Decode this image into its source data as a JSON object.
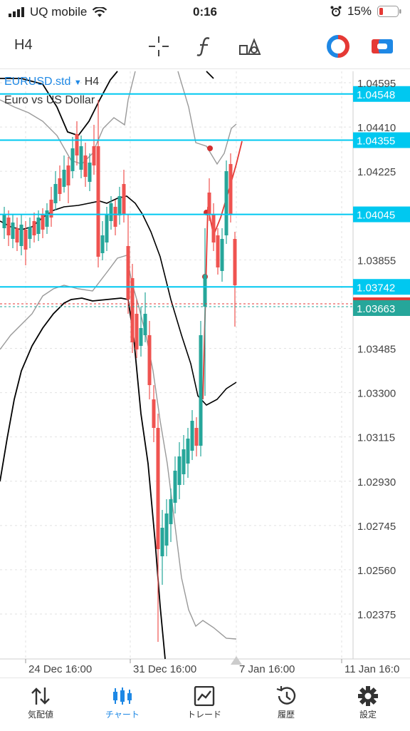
{
  "status_bar": {
    "carrier": "UQ mobile",
    "time": "0:16",
    "battery": "15%",
    "icons": [
      "signal-icon",
      "wifi-icon",
      "alarm-icon",
      "battery-icon"
    ]
  },
  "toolbar": {
    "timeframe": "H4",
    "icons": [
      "crosshair-icon",
      "function-icon",
      "objects-icon",
      "quick-trade-icon",
      "one-click-icon"
    ]
  },
  "chart": {
    "symbol": "EURUSD.std",
    "timeframe": "H4",
    "description": "Euro vs US Dollar",
    "price_labels": [
      "1.04595",
      "1.04410",
      "1.04225",
      "1.03855",
      "1.03485",
      "1.03300",
      "1.03115",
      "1.02930",
      "1.02745",
      "1.02560",
      "1.02375"
    ],
    "levels": [
      {
        "price": "1.04548"
      },
      {
        "price": "1.04355"
      },
      {
        "price": "1.04045"
      },
      {
        "price": "1.03742"
      }
    ],
    "current_price": "1.03663",
    "date_labels": [
      "24 Dec 16:00",
      "31 Dec 16:00",
      "7 Jan 16:00",
      "11 Jan 16:0"
    ],
    "colors": {
      "bull": "#26a69a",
      "bear": "#ef5350",
      "level": "#00c8f0",
      "current": "#26a69a"
    }
  },
  "chart_data": {
    "type": "candlestick",
    "ylim": [
      1.0224,
      1.047
    ],
    "x": [
      "24 Dec 16:00",
      "31 Dec 16:00",
      "7 Jan 16:00",
      "11 Jan 16:0"
    ],
    "horizontal_levels": [
      1.04548,
      1.04355,
      1.04045,
      1.03742
    ],
    "current_price": 1.03663
  },
  "nav": {
    "items": [
      {
        "label": "気配値",
        "icon": "quotes-icon"
      },
      {
        "label": "チャート",
        "icon": "chart-icon"
      },
      {
        "label": "トレード",
        "icon": "trade-icon"
      },
      {
        "label": "履歴",
        "icon": "history-icon"
      },
      {
        "label": "設定",
        "icon": "settings-icon"
      }
    ]
  }
}
